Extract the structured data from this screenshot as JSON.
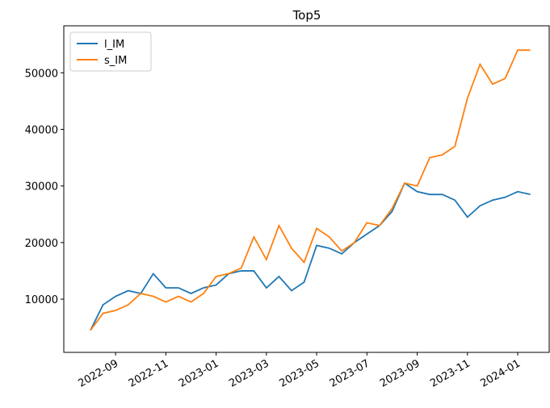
{
  "chart_data": {
    "type": "line",
    "title": "Top5",
    "categories": [
      null,
      null,
      "2022-09",
      null,
      null,
      null,
      "2022-11",
      null,
      null,
      null,
      "2023-01",
      null,
      null,
      null,
      "2023-03",
      null,
      null,
      null,
      "2023-05",
      null,
      null,
      null,
      "2023-07",
      null,
      null,
      null,
      "2023-09",
      null,
      null,
      null,
      "2023-11",
      null,
      null,
      null,
      "2024-01",
      null
    ],
    "series": [
      {
        "name": "l_IM",
        "color": "#1f77b4",
        "values": [
          4500,
          9000,
          10500,
          11500,
          11000,
          14500,
          12000,
          12000,
          11000,
          12000,
          12500,
          14500,
          15000,
          15000,
          12000,
          14000,
          11500,
          13000,
          19500,
          19000,
          18000,
          20000,
          21500,
          23000,
          25500,
          30500,
          29000,
          28500,
          28500,
          27500,
          24500,
          26500,
          27500,
          28000,
          29000,
          28500
        ]
      },
      {
        "name": "s_IM",
        "color": "#ff7f0e",
        "values": [
          4500,
          7500,
          8000,
          9000,
          11000,
          10500,
          9500,
          10500,
          9500,
          11000,
          14000,
          14500,
          15500,
          21000,
          17000,
          23000,
          19000,
          16500,
          22500,
          21000,
          18500,
          20000,
          23500,
          23000,
          26000,
          30500,
          30000,
          35000,
          35500,
          37000,
          45500,
          51500,
          48000,
          49000,
          54000,
          54000
        ]
      }
    ],
    "ylim": [
      600,
      58300
    ],
    "yticks": [
      10000,
      20000,
      30000,
      40000,
      50000
    ],
    "legend": "upper left"
  }
}
